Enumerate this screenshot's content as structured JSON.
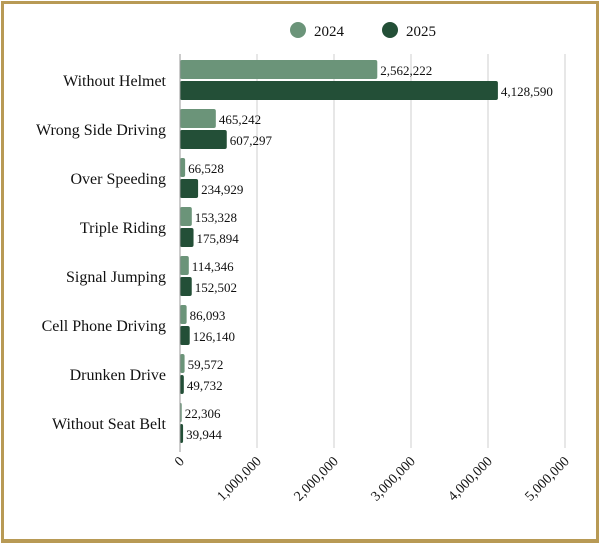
{
  "chart_data": {
    "type": "bar",
    "orientation": "horizontal",
    "title": "",
    "xlabel": "",
    "ylabel": "",
    "xlim": [
      0,
      5000000
    ],
    "grid": true,
    "legend_position": "top",
    "categories": [
      "Without Helmet",
      "Wrong Side Driving",
      "Over Speeding",
      "Triple Riding",
      "Signal Jumping",
      "Cell Phone Driving",
      "Drunken Drive",
      "Without Seat Belt"
    ],
    "series": [
      {
        "name": "2024",
        "color": "#6b9479",
        "values": [
          2562222,
          465242,
          66528,
          153328,
          114346,
          86093,
          59572,
          22306
        ],
        "labels": [
          "2,562,222",
          "465,242",
          "66,528",
          "153,328",
          "114,346",
          "86,093",
          "59,572",
          "22,306"
        ]
      },
      {
        "name": "2025",
        "color": "#234f37",
        "values": [
          4128590,
          607297,
          234929,
          175894,
          152502,
          126140,
          49732,
          39944
        ],
        "labels": [
          "4,128,590",
          "607,297",
          "234,929",
          "175,894",
          "152,502",
          "126,140",
          "49,732",
          "39,944"
        ]
      }
    ],
    "x_ticks": [
      0,
      1000000,
      2000000,
      3000000,
      4000000,
      5000000
    ],
    "x_tick_labels": [
      "0",
      "1,000,000",
      "2,000,000",
      "3,000,000",
      "4,000,000",
      "5,000,000"
    ]
  }
}
